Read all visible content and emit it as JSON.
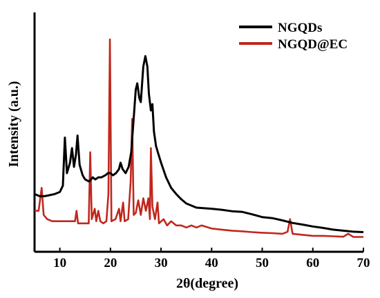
{
  "chart_data": {
    "type": "line",
    "title": "",
    "xlabel": "2θ(degree)",
    "ylabel": "Intensity (a.u.)",
    "xlim": [
      5,
      70
    ],
    "xticks": [
      10,
      20,
      30,
      40,
      50,
      60,
      70
    ],
    "y_units": "relative intensity (0-100)",
    "ylim": [
      0,
      100
    ],
    "grid": false,
    "legend_position": "top-right",
    "series": [
      {
        "name": "NGQDs",
        "color": "#000000",
        "points": [
          [
            5,
            22
          ],
          [
            6,
            21
          ],
          [
            7,
            21
          ],
          [
            8,
            21.5
          ],
          [
            9,
            22
          ],
          [
            10,
            23
          ],
          [
            10.6,
            26
          ],
          [
            11,
            49
          ],
          [
            11.4,
            32
          ],
          [
            12,
            37
          ],
          [
            12.4,
            44
          ],
          [
            12.8,
            35
          ],
          [
            13.2,
            41
          ],
          [
            13.5,
            50
          ],
          [
            13.9,
            36
          ],
          [
            14.5,
            31
          ],
          [
            15,
            29
          ],
          [
            15.8,
            28
          ],
          [
            16.5,
            30
          ],
          [
            17,
            29
          ],
          [
            17.6,
            30
          ],
          [
            18.2,
            30
          ],
          [
            19,
            31
          ],
          [
            19.5,
            32
          ],
          [
            20,
            32
          ],
          [
            20.5,
            31
          ],
          [
            21.1,
            32
          ],
          [
            21.7,
            34
          ],
          [
            22,
            37
          ],
          [
            22.4,
            34
          ],
          [
            23,
            32
          ],
          [
            23.6,
            35
          ],
          [
            24.1,
            42
          ],
          [
            24.5,
            55
          ],
          [
            25,
            72
          ],
          [
            25.3,
            75
          ],
          [
            25.7,
            68
          ],
          [
            26,
            66
          ],
          [
            26.5,
            83
          ],
          [
            26.9,
            88
          ],
          [
            27.3,
            83
          ],
          [
            27.6,
            70
          ],
          [
            28,
            62
          ],
          [
            28.3,
            65
          ],
          [
            28.6,
            52
          ],
          [
            29,
            45
          ],
          [
            29.5,
            41
          ],
          [
            30,
            37
          ],
          [
            31,
            30
          ],
          [
            32,
            25
          ],
          [
            33,
            22
          ],
          [
            34,
            19.5
          ],
          [
            35,
            17.5
          ],
          [
            37,
            15.5
          ],
          [
            40,
            15
          ],
          [
            42,
            14.5
          ],
          [
            44,
            13.8
          ],
          [
            46,
            13.5
          ],
          [
            48,
            12.3
          ],
          [
            50,
            11
          ],
          [
            52,
            10.5
          ],
          [
            54,
            9.4
          ],
          [
            56,
            8.2
          ],
          [
            58,
            7.4
          ],
          [
            60,
            6.5
          ],
          [
            62,
            5.8
          ],
          [
            64,
            5
          ],
          [
            66,
            4.5
          ],
          [
            68,
            4
          ],
          [
            70,
            3.8
          ]
        ]
      },
      {
        "name": "NGQD@EC",
        "color": "#c0271d",
        "points": [
          [
            5,
            14
          ],
          [
            5.8,
            14
          ],
          [
            6.4,
            25
          ],
          [
            6.8,
            12
          ],
          [
            7.5,
            10
          ],
          [
            8.5,
            9
          ],
          [
            10,
            9
          ],
          [
            12,
            9
          ],
          [
            13,
            9
          ],
          [
            13.3,
            14
          ],
          [
            13.6,
            8
          ],
          [
            15,
            8
          ],
          [
            15.7,
            8
          ],
          [
            16,
            42
          ],
          [
            16.3,
            10
          ],
          [
            16.9,
            15
          ],
          [
            17.2,
            9
          ],
          [
            17.6,
            14
          ],
          [
            18,
            9
          ],
          [
            18.6,
            8
          ],
          [
            19.2,
            9
          ],
          [
            19.6,
            22
          ],
          [
            19.9,
            96
          ],
          [
            20.2,
            9
          ],
          [
            21,
            10
          ],
          [
            21.7,
            15
          ],
          [
            22,
            9
          ],
          [
            22.5,
            18
          ],
          [
            22.8,
            9
          ],
          [
            23.5,
            10
          ],
          [
            24,
            28
          ],
          [
            24.3,
            58
          ],
          [
            24.6,
            12
          ],
          [
            25,
            13
          ],
          [
            25.5,
            19
          ],
          [
            26,
            12
          ],
          [
            26.5,
            20
          ],
          [
            27,
            14
          ],
          [
            27.5,
            20
          ],
          [
            27.8,
            10
          ],
          [
            28,
            44
          ],
          [
            28.3,
            16
          ],
          [
            28.8,
            10
          ],
          [
            29.3,
            18
          ],
          [
            29.6,
            8
          ],
          [
            30.5,
            10
          ],
          [
            31.2,
            7
          ],
          [
            32,
            9
          ],
          [
            33,
            7
          ],
          [
            34,
            7
          ],
          [
            35,
            6
          ],
          [
            36,
            7
          ],
          [
            37,
            6
          ],
          [
            38,
            7
          ],
          [
            40,
            5.5
          ],
          [
            42,
            5
          ],
          [
            44,
            4.5
          ],
          [
            46,
            4.2
          ],
          [
            48,
            3.8
          ],
          [
            50,
            3.5
          ],
          [
            52,
            3.3
          ],
          [
            54,
            3
          ],
          [
            55,
            4
          ],
          [
            55.5,
            10
          ],
          [
            56,
            3
          ],
          [
            58,
            2.5
          ],
          [
            60,
            2
          ],
          [
            62,
            2
          ],
          [
            64,
            1.8
          ],
          [
            66,
            1.6
          ],
          [
            67,
            3
          ],
          [
            68,
            1.5
          ],
          [
            70,
            1.5
          ]
        ]
      }
    ]
  }
}
